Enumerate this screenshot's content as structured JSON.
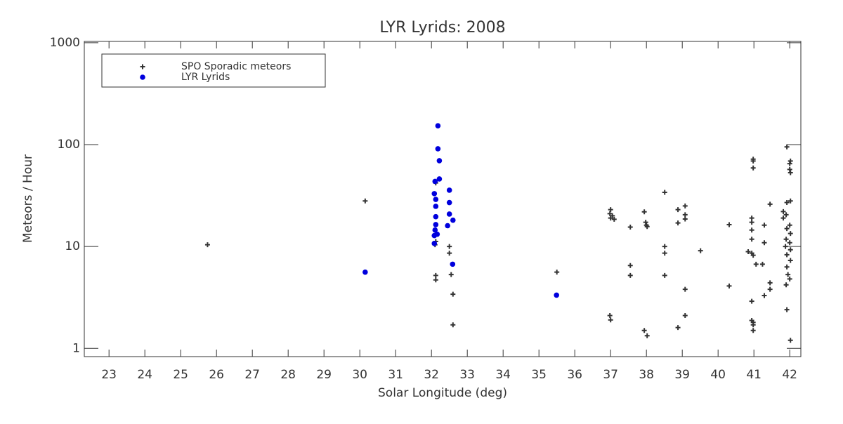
{
  "chart_data": {
    "type": "scatter",
    "title": "LYR Lyrids: 2008",
    "xlabel": "Solar Longitude (deg)",
    "ylabel": "Meteors / Hour",
    "xlim": [
      22.31,
      42.31
    ],
    "ylim": [
      0.83,
      1030
    ],
    "ylog": true,
    "xticks": [
      23,
      24,
      25,
      26,
      27,
      28,
      29,
      30,
      31,
      32,
      33,
      34,
      35,
      36,
      37,
      38,
      39,
      40,
      41,
      42
    ],
    "yticks": [
      1,
      10,
      100,
      1000
    ],
    "legend": "upper left",
    "series": [
      {
        "name": "SPO Sporadic meteors",
        "color": "#333333",
        "marker": "+",
        "x": [
          25.75,
          30.15,
          32.12,
          32.12,
          32.12,
          32.12,
          32.1,
          32.5,
          32.5,
          32.55,
          32.6,
          32.6,
          35.5,
          36.98,
          37.0,
          37.05,
          37.0,
          37.1,
          36.98,
          37.0,
          37.55,
          37.55,
          37.55,
          37.94,
          37.98,
          38.0,
          38.02,
          37.94,
          38.02,
          38.51,
          38.51,
          38.51,
          38.51,
          38.88,
          38.88,
          38.88,
          39.08,
          39.08,
          39.08,
          39.08,
          39.08,
          39.51,
          40.31,
          40.31,
          40.84,
          40.94,
          40.94,
          40.94,
          40.94,
          40.94,
          40.98,
          40.94,
          40.98,
          40.98,
          40.98,
          40.94,
          40.98,
          40.98,
          40.98,
          41.06,
          41.24,
          41.29,
          41.29,
          41.29,
          41.45,
          41.45,
          41.45,
          41.82,
          41.82,
          41.92,
          42.02,
          42.0,
          42.0,
          42.02,
          41.92,
          42.02,
          41.9,
          42.0,
          41.92,
          42.02,
          41.9,
          42.0,
          41.88,
          42.02,
          41.92,
          42.02,
          41.92,
          41.95,
          42.0,
          41.9,
          41.92,
          42.02
        ],
        "values": [
          10.4,
          28,
          5.2,
          4.7,
          42,
          11.2,
          10.4,
          10,
          8.6,
          5.3,
          3.4,
          1.7,
          5.6,
          21,
          23,
          20,
          19,
          18.5,
          2.1,
          1.9,
          15.5,
          6.5,
          5.2,
          21.9,
          17.3,
          16.2,
          15.7,
          1.5,
          1.33,
          34,
          10,
          8.6,
          5.2,
          23,
          17,
          1.6,
          25,
          20.5,
          18.6,
          3.8,
          2.1,
          9.1,
          16.4,
          4.1,
          8.9,
          19,
          17.3,
          14.5,
          11.8,
          8.6,
          8.2,
          1.88,
          1.8,
          1.7,
          1.5,
          2.9,
          59,
          69,
          72,
          6.7,
          6.7,
          16.2,
          10.9,
          3.3,
          26,
          4.4,
          3.8,
          19,
          22,
          95,
          69,
          65,
          57,
          53,
          27,
          28,
          20.5,
          16.2,
          15,
          13.4,
          11.8,
          10.9,
          10,
          9.3,
          8.3,
          7.3,
          6.3,
          5.3,
          4.8,
          4.2,
          2.4,
          1.2
        ]
      },
      {
        "name": "LYR Lyrids",
        "color": "#0000dd",
        "marker": "o",
        "x": [
          30.15,
          32.18,
          32.18,
          32.22,
          32.22,
          32.1,
          32.08,
          32.12,
          32.12,
          32.12,
          32.12,
          32.1,
          32.16,
          32.08,
          32.08,
          32.5,
          32.5,
          32.5,
          32.6,
          32.45,
          32.59,
          35.49
        ],
        "values": [
          5.6,
          153,
          91,
          69.5,
          46,
          43.5,
          33,
          29,
          24.8,
          19.6,
          16.4,
          14.5,
          13.2,
          12.8,
          10.7,
          35.7,
          27,
          20.8,
          18.1,
          16,
          6.7,
          3.33
        ]
      }
    ]
  }
}
